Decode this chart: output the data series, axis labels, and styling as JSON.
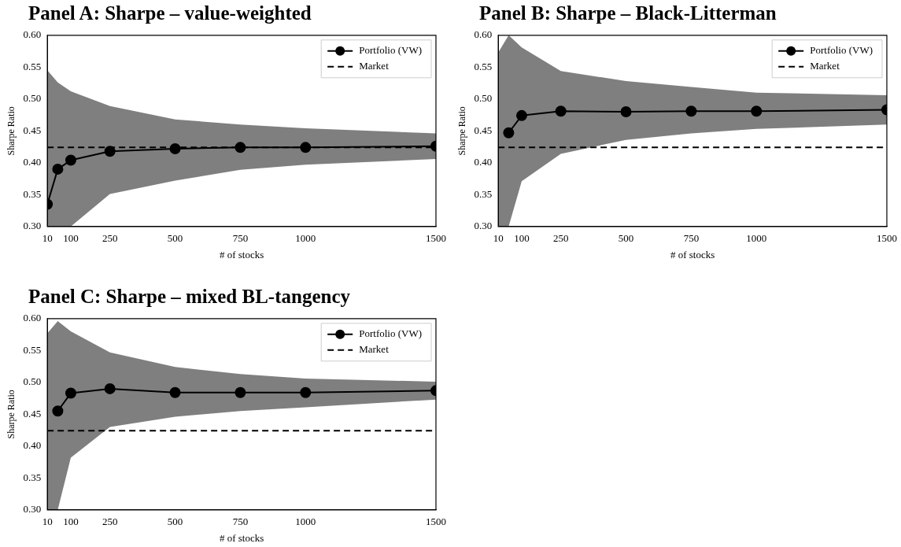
{
  "chart_data": [
    {
      "type": "line",
      "title": "Panel A: Sharpe – value-weighted",
      "xlabel": "# of stocks",
      "ylabel": "Sharpe Ratio",
      "x": [
        10,
        50,
        100,
        250,
        500,
        750,
        1000,
        1500
      ],
      "xlim": [
        10,
        1500
      ],
      "xticks": [
        10,
        100,
        250,
        500,
        750,
        1000,
        1500
      ],
      "ylim": [
        0.3,
        0.6
      ],
      "yticks": [
        {
          "value": 0.3,
          "label": "0.30"
        },
        {
          "value": 0.35,
          "label": "0.35"
        },
        {
          "value": 0.4,
          "label": "0.40"
        },
        {
          "value": 0.45,
          "label": "0.45"
        },
        {
          "value": 0.5,
          "label": "0.50"
        },
        {
          "value": 0.55,
          "label": "0.55"
        },
        {
          "value": 0.6,
          "label": "0.60"
        }
      ],
      "legend": "top right",
      "marker": "circle",
      "series": [
        {
          "name": "Portfolio (VW)",
          "color": "#000000",
          "values": [
            0.335,
            0.39,
            0.404,
            0.418,
            0.422,
            0.424,
            0.424,
            0.426
          ],
          "lower": [
            0.3,
            0.3,
            0.3,
            0.351,
            0.372,
            0.389,
            0.397,
            0.406
          ],
          "upper": [
            0.545,
            0.526,
            0.512,
            0.489,
            0.468,
            0.46,
            0.454,
            0.446
          ]
        }
      ],
      "ref_lines": [
        {
          "axis": "y",
          "value": 0.424,
          "label": "Market",
          "color": "#000000",
          "line_style": "dashed"
        }
      ]
    },
    {
      "type": "line",
      "title": "Panel B: Sharpe – Black-Litterman",
      "xlabel": "# of stocks",
      "ylabel": "Sharpe Ratio",
      "x": [
        10,
        50,
        100,
        250,
        500,
        750,
        1000,
        1500
      ],
      "xlim": [
        10,
        1500
      ],
      "xticks": [
        10,
        100,
        250,
        500,
        750,
        1000,
        1500
      ],
      "ylim": [
        0.3,
        0.6
      ],
      "yticks": [
        {
          "value": 0.3,
          "label": "0.30"
        },
        {
          "value": 0.35,
          "label": "0.35"
        },
        {
          "value": 0.4,
          "label": "0.40"
        },
        {
          "value": 0.45,
          "label": "0.45"
        },
        {
          "value": 0.5,
          "label": "0.50"
        },
        {
          "value": 0.55,
          "label": "0.55"
        },
        {
          "value": 0.6,
          "label": "0.60"
        }
      ],
      "legend": "top right",
      "marker": "circle",
      "series": [
        {
          "name": "Portfolio (VW)",
          "color": "#000000",
          "values": [
            null,
            0.447,
            0.474,
            0.481,
            0.48,
            0.481,
            0.481,
            0.483
          ],
          "lower": [
            0.3,
            0.3,
            0.371,
            0.414,
            0.436,
            0.446,
            0.453,
            0.46
          ],
          "upper": [
            0.573,
            0.6,
            0.581,
            0.544,
            0.528,
            0.519,
            0.51,
            0.506
          ]
        }
      ],
      "ref_lines": [
        {
          "axis": "y",
          "value": 0.424,
          "label": "Market",
          "color": "#000000",
          "line_style": "dashed"
        }
      ]
    },
    {
      "type": "line",
      "title": "Panel C: Sharpe – mixed BL-tangency",
      "xlabel": "# of stocks",
      "ylabel": "Sharpe Ratio",
      "x": [
        10,
        50,
        100,
        250,
        500,
        750,
        1000,
        1500
      ],
      "xlim": [
        10,
        1500
      ],
      "xticks": [
        10,
        100,
        250,
        500,
        750,
        1000,
        1500
      ],
      "ylim": [
        0.3,
        0.6
      ],
      "yticks": [
        {
          "value": 0.3,
          "label": "0.30"
        },
        {
          "value": 0.35,
          "label": "0.35"
        },
        {
          "value": 0.4,
          "label": "0.40"
        },
        {
          "value": 0.45,
          "label": "0.45"
        },
        {
          "value": 0.5,
          "label": "0.50"
        },
        {
          "value": 0.55,
          "label": "0.55"
        },
        {
          "value": 0.6,
          "label": "0.60"
        }
      ],
      "legend": "top right",
      "marker": "circle",
      "series": [
        {
          "name": "Portfolio (VW)",
          "color": "#000000",
          "values": [
            null,
            0.455,
            0.483,
            0.49,
            0.484,
            0.484,
            0.484,
            0.487
          ],
          "lower": [
            0.3,
            0.3,
            0.382,
            0.43,
            0.446,
            0.455,
            0.461,
            0.473
          ],
          "upper": [
            0.577,
            0.596,
            0.58,
            0.547,
            0.524,
            0.513,
            0.506,
            0.501
          ]
        }
      ],
      "ref_lines": [
        {
          "axis": "y",
          "value": 0.424,
          "label": "Market",
          "color": "#000000",
          "line_style": "dashed"
        }
      ]
    }
  ]
}
